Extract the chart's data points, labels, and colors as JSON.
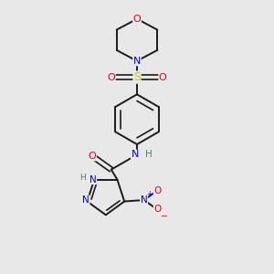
{
  "bg_color": "#e8e8e8",
  "bond_color": "#1a1a1a",
  "atom_colors": {
    "N": "#0000ee",
    "O": "#ee0000",
    "S": "#cccc00",
    "H": "#557777",
    "C": "#1a1a1a"
  },
  "figsize": [
    3.0,
    3.0
  ],
  "dpi": 100
}
